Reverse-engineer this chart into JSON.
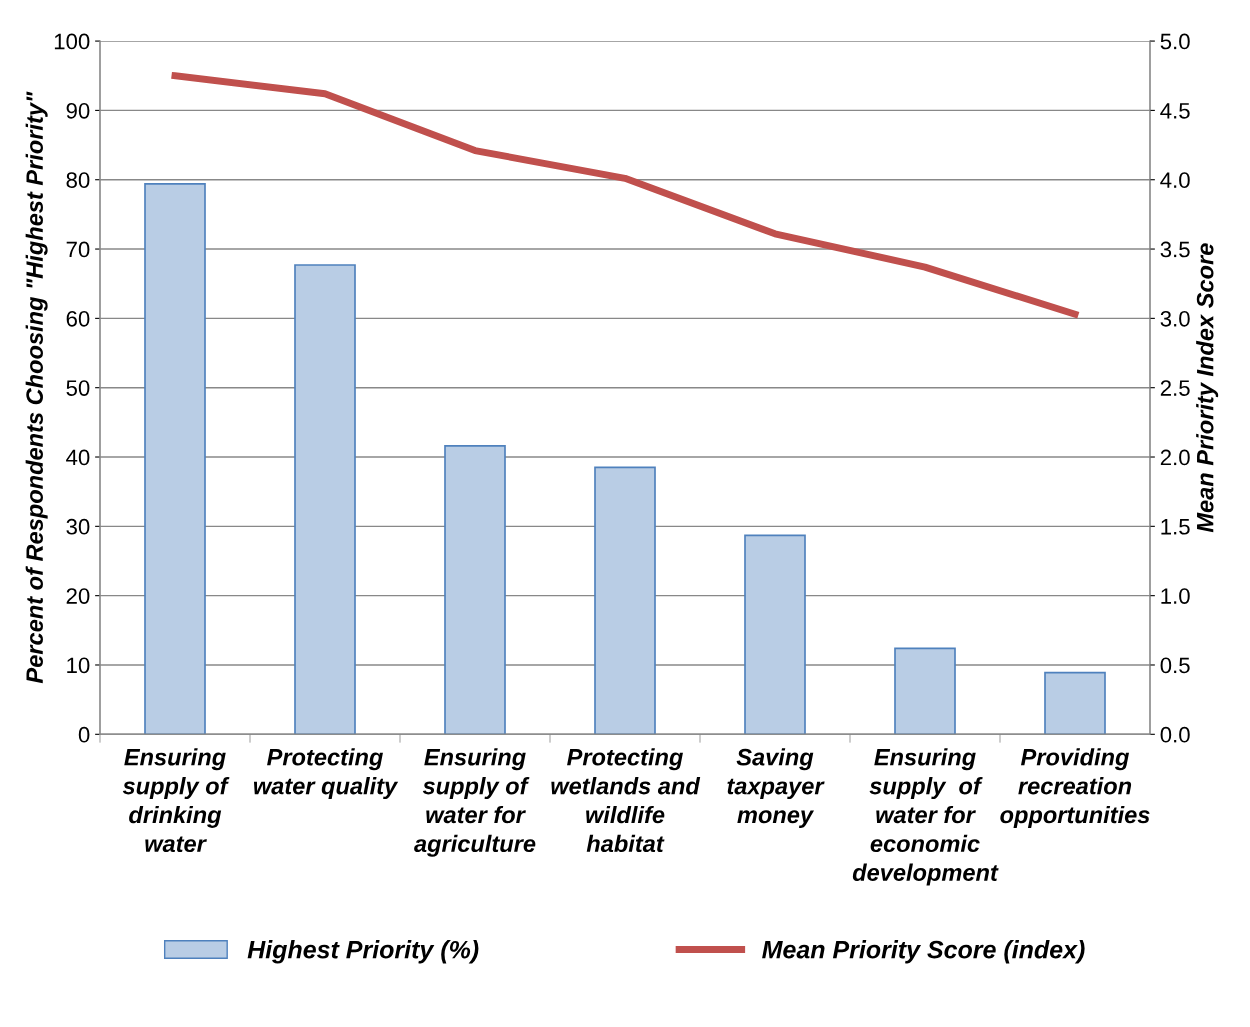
{
  "chart_data": {
    "type": "bar",
    "categories": [
      "Ensuring\nsupply of\ndrinking\nwater",
      "Protecting\nwater quality",
      "Ensuring\nsupply of\nwater for\nagriculture",
      "Protecting\nwetlands and\nwildlife\nhabitat",
      "Saving\ntaxpayer\nmoney",
      "Ensuring\nsupply  of\nwater for\neconomic\ndevelopment",
      "Providing\nrecreation\nopportunities"
    ],
    "ylabel": "Percent of Respondents Choosing \"Highest Priority\"",
    "y2label": "Mean Priority Index Score",
    "series": [
      {
        "name": "Highest Priority (%)",
        "color": "#b9cde5",
        "values": [
          79.4,
          67.7,
          41.6,
          38.5,
          28.7,
          12.4,
          8.9
        ]
      },
      {
        "name": "Mean Priority Score (index)",
        "type": "line",
        "axis": "y2",
        "color": "#c0504d",
        "values": [
          4.75,
          4.62,
          4.21,
          4.01,
          3.61,
          3.37,
          3.03
        ]
      }
    ],
    "ylim": [
      0,
      100
    ],
    "yticks": [
      0,
      10,
      20,
      30,
      40,
      50,
      60,
      70,
      80,
      90,
      100
    ],
    "y2lim": [
      0,
      5
    ],
    "y2ticks": [
      {
        "value": 0,
        "label": "0.0"
      },
      {
        "value": 0.5,
        "label": "0.5"
      },
      {
        "value": 1,
        "label": "1.0"
      },
      {
        "value": 1.5,
        "label": "1.5"
      },
      {
        "value": 2,
        "label": "2.0"
      },
      {
        "value": 2.5,
        "label": "2.5"
      },
      {
        "value": 3,
        "label": "3.0"
      },
      {
        "value": 3.5,
        "label": "3.5"
      },
      {
        "value": 4,
        "label": "4.0"
      },
      {
        "value": 4.5,
        "label": "4.5"
      },
      {
        "value": 5,
        "label": "5.0"
      }
    ],
    "grid": "y",
    "legend": "bottom",
    "marker": "none",
    "line_style": "solid"
  }
}
